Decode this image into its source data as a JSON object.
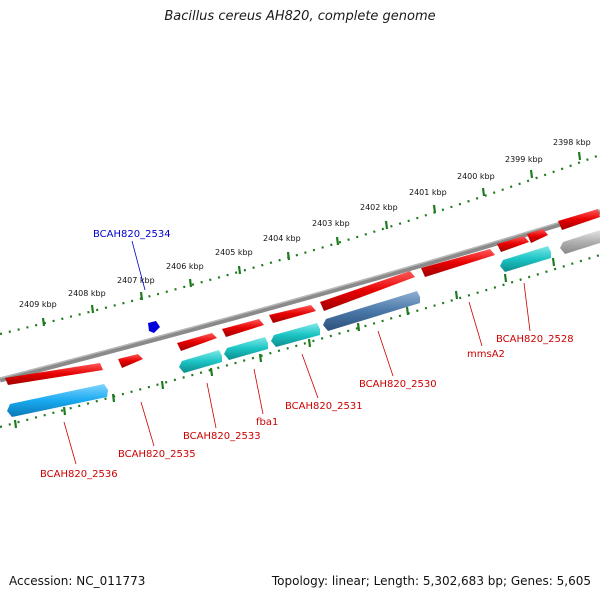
{
  "title": "Bacillus cereus AH820, complete genome",
  "footer": {
    "accession": "Accession: NC_011773",
    "summary": "Topology: linear; Length: 5,302,683 bp; Genes: 5,605"
  },
  "scale": {
    "ticks": [
      "2409 kbp",
      "2408 kbp",
      "2407 kbp",
      "2406 kbp",
      "2405 kbp",
      "2404 kbp",
      "2403 kbp",
      "2402 kbp",
      "2401 kbp",
      "2400 kbp",
      "2399 kbp",
      "2398 kbp"
    ]
  },
  "genes": [
    {
      "label": "BCAH820_2536"
    },
    {
      "label": "BCAH820_2535"
    },
    {
      "label": "BCAH820_2534"
    },
    {
      "label": "BCAH820_2533"
    },
    {
      "label": "fba1"
    },
    {
      "label": "BCAH820_2531"
    },
    {
      "label": "BCAH820_2530"
    },
    {
      "label": "mmsA2"
    },
    {
      "label": "BCAH820_2528"
    }
  ],
  "colors": {
    "forward_gene": "#e60000",
    "reverse_gene_cyan": "#1cc4c4",
    "reverse_gene_blue": "#1aaaf0",
    "reverse_gene_steel": "#4a78a8",
    "reverse_gene_grey": "#b0b0b0",
    "backbone": "#808080",
    "scale_tick": "#1e7a1e",
    "label_red": "#cc0000",
    "label_blue": "#0000cc"
  }
}
